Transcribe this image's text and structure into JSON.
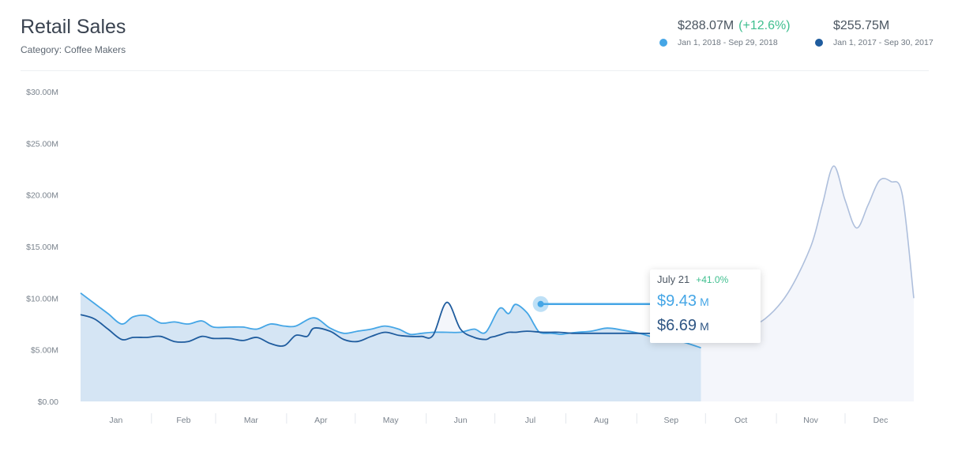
{
  "header": {
    "title": "Retail Sales",
    "subtitle": "Category: Coffee Makers"
  },
  "legend": [
    {
      "value": "$288.07M",
      "change": "(+12.6%)",
      "range": "Jan 1, 2018 - Sep 29, 2018",
      "color": "#45a6e6"
    },
    {
      "value": "$255.75M",
      "change": "",
      "range": "Jan 1, 2017 - Sep 30, 2017",
      "color": "#1f5c9e"
    }
  ],
  "tooltip": {
    "date": "July 21",
    "change": "+41.0%",
    "value_2018": "$9.43",
    "value_2017": "$6.69",
    "unit": "M"
  },
  "chart_data": {
    "type": "line",
    "title": "Retail Sales",
    "subtitle": "Category: Coffee Makers",
    "xlabel": "",
    "ylabel": "",
    "ylim": [
      0,
      30
    ],
    "xlim": [
      1,
      365
    ],
    "y_ticks": [
      0,
      5,
      10,
      15,
      20,
      25,
      30
    ],
    "y_tick_labels": [
      "$0.00",
      "$5.00M",
      "$10.00M",
      "$15.00M",
      "$20.00M",
      "$25.00M",
      "$30.00M"
    ],
    "x_tick_labels": [
      "Jan",
      "Feb",
      "Mar",
      "Apr",
      "May",
      "Jun",
      "Jul",
      "Aug",
      "Sep",
      "Oct",
      "Nov",
      "Dec"
    ],
    "grid": false,
    "legend_position": "top-right",
    "series": [
      {
        "name": "Jan 1, 2018 - Sep 29, 2018",
        "color": "#45a6e6",
        "x": [
          1,
          7,
          13,
          19,
          24,
          30,
          36,
          42,
          48,
          54,
          59,
          66,
          72,
          78,
          84,
          90,
          95,
          103,
          110,
          116,
          122,
          128,
          134,
          140,
          145,
          150,
          155,
          161,
          167,
          173,
          178,
          184,
          188,
          191,
          196,
          199,
          201,
          203,
          207,
          211,
          214,
          218,
          224,
          231,
          238,
          245,
          252,
          259,
          265,
          272
        ],
        "y": [
          10.5,
          9.5,
          8.5,
          7.5,
          8.2,
          8.3,
          7.6,
          7.7,
          7.5,
          7.8,
          7.2,
          7.2,
          7.2,
          7.0,
          7.5,
          7.3,
          7.3,
          8.1,
          7.1,
          6.6,
          6.8,
          7.0,
          7.3,
          7.0,
          6.5,
          6.6,
          6.7,
          6.7,
          6.7,
          7.0,
          6.7,
          9.0,
          8.5,
          9.4,
          8.6,
          7.5,
          6.8,
          6.6,
          6.6,
          6.5,
          6.6,
          6.7,
          6.8,
          7.1,
          6.9,
          6.6,
          6.2,
          6.0,
          5.7,
          5.2
        ]
      },
      {
        "name": "Jan 1, 2017 - Sep 30, 2017",
        "color": "#1f5c9e",
        "x": [
          1,
          7,
          13,
          19,
          24,
          30,
          36,
          42,
          48,
          54,
          59,
          66,
          72,
          78,
          84,
          90,
          95,
          100,
          103,
          110,
          116,
          122,
          128,
          134,
          140,
          145,
          150,
          155,
          161,
          167,
          173,
          178,
          180,
          182,
          185,
          188,
          191,
          196,
          203,
          210,
          216,
          224,
          231,
          238,
          245,
          252,
          259,
          265,
          272,
          278,
          284,
          290,
          300,
          310,
          320,
          325,
          330,
          335,
          340,
          345,
          350,
          355,
          360,
          365
        ],
        "y": [
          8.4,
          8.0,
          7.0,
          6.0,
          6.2,
          6.2,
          6.3,
          5.8,
          5.8,
          6.3,
          6.1,
          6.1,
          5.9,
          6.2,
          5.6,
          5.4,
          6.4,
          6.3,
          7.1,
          6.8,
          6.0,
          5.8,
          6.3,
          6.7,
          6.4,
          6.3,
          6.3,
          6.4,
          9.6,
          7.0,
          6.2,
          6.0,
          6.2,
          6.3,
          6.5,
          6.7,
          6.7,
          6.8,
          6.7,
          6.7,
          6.6,
          6.6,
          6.6,
          6.6,
          6.6,
          6.6,
          6.7,
          6.7,
          6.7,
          6.7,
          6.9,
          7.0,
          8.0,
          10.5,
          15.0,
          19.0,
          22.8,
          19.5,
          16.8,
          19.0,
          21.4,
          21.3,
          20.0,
          10.0
        ]
      }
    ]
  }
}
